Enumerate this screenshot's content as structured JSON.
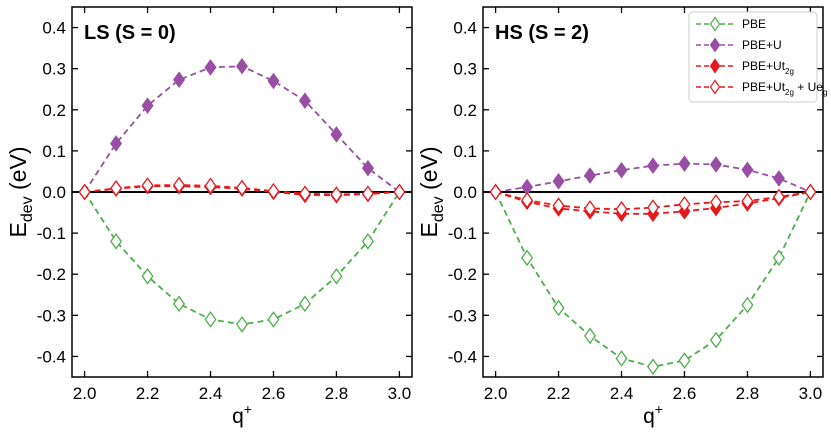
{
  "figure": {
    "x_label_main": "q",
    "x_label_sup": "+",
    "y_label_main": "E",
    "y_label_sub": "dev",
    "y_label_unit": " (eV)"
  },
  "legend": {
    "entries": [
      {
        "series": "PBE",
        "main": "PBE",
        "parts": []
      },
      {
        "series": "PBE+U",
        "main": "PBE+U",
        "parts": []
      },
      {
        "series": "PBE+U_t2g",
        "main": "PBE+U",
        "parts": [
          {
            "t": "t",
            "sub": "2g"
          }
        ]
      },
      {
        "series": "PBE+U_t2g+U_eg",
        "main": "PBE+U",
        "parts": [
          {
            "t": "t",
            "sub": "2g"
          },
          {
            "t": " + U",
            "sub": null
          },
          {
            "t": "e",
            "sub": "g"
          }
        ]
      }
    ]
  },
  "chart_data": [
    {
      "type": "line",
      "title": "LS (S = 0)",
      "xlabel": "q+",
      "ylabel": "E_dev (eV)",
      "xlim": [
        1.96,
        3.04
      ],
      "ylim": [
        -0.45,
        0.45
      ],
      "xticks": [
        2.0,
        2.2,
        2.4,
        2.6,
        2.8,
        3.0
      ],
      "yticks": [
        -0.4,
        -0.3,
        -0.2,
        -0.1,
        0.0,
        0.1,
        0.2,
        0.3,
        0.4
      ],
      "x": [
        2.0,
        2.1,
        2.2,
        2.3,
        2.4,
        2.5,
        2.6,
        2.7,
        2.8,
        2.9,
        3.0
      ],
      "series": [
        {
          "name": "PBE",
          "color": "#4daf4a",
          "marker": "diamond-open",
          "values": [
            0.0,
            -0.12,
            -0.205,
            -0.272,
            -0.31,
            -0.322,
            -0.31,
            -0.272,
            -0.205,
            -0.12,
            0.0
          ]
        },
        {
          "name": "PBE+U",
          "color": "#984ea3",
          "marker": "diamond-filled",
          "values": [
            0.0,
            0.118,
            0.21,
            0.273,
            0.303,
            0.306,
            0.27,
            0.222,
            0.14,
            0.058,
            0.0
          ]
        },
        {
          "name": "PBE+U_t2g",
          "color": "#e41a1c",
          "marker": "diamond-filled",
          "values": [
            0.0,
            0.008,
            0.014,
            0.014,
            0.012,
            0.008,
            0.0,
            -0.007,
            -0.008,
            -0.005,
            0.0
          ]
        },
        {
          "name": "PBE+U_t2g+U_eg",
          "color": "#e41a1c",
          "marker": "diamond-open",
          "values": [
            0.0,
            0.009,
            0.016,
            0.017,
            0.015,
            0.01,
            0.002,
            -0.004,
            -0.006,
            -0.004,
            0.0
          ]
        }
      ]
    },
    {
      "type": "line",
      "title": "HS (S = 2)",
      "xlabel": "q+",
      "ylabel": "E_dev (eV)",
      "xlim": [
        1.96,
        3.04
      ],
      "ylim": [
        -0.45,
        0.45
      ],
      "xticks": [
        2.0,
        2.2,
        2.4,
        2.6,
        2.8,
        3.0
      ],
      "yticks": [
        -0.4,
        -0.3,
        -0.2,
        -0.1,
        0.0,
        0.1,
        0.2,
        0.3,
        0.4
      ],
      "x": [
        2.0,
        2.1,
        2.2,
        2.3,
        2.4,
        2.5,
        2.6,
        2.7,
        2.8,
        2.9,
        3.0
      ],
      "series": [
        {
          "name": "PBE",
          "color": "#4daf4a",
          "marker": "diamond-open",
          "values": [
            0.0,
            -0.16,
            -0.282,
            -0.35,
            -0.405,
            -0.425,
            -0.41,
            -0.36,
            -0.275,
            -0.16,
            0.0
          ]
        },
        {
          "name": "PBE+U",
          "color": "#984ea3",
          "marker": "diamond-filled",
          "values": [
            0.0,
            0.012,
            0.026,
            0.04,
            0.053,
            0.064,
            0.069,
            0.067,
            0.054,
            0.033,
            0.0
          ]
        },
        {
          "name": "PBE+U_t2g",
          "color": "#e41a1c",
          "marker": "diamond-filled",
          "values": [
            0.0,
            -0.024,
            -0.04,
            -0.047,
            -0.053,
            -0.053,
            -0.047,
            -0.039,
            -0.028,
            -0.015,
            0.0
          ]
        },
        {
          "name": "PBE+U_t2g+U_eg",
          "color": "#e41a1c",
          "marker": "diamond-open",
          "values": [
            0.0,
            -0.02,
            -0.033,
            -0.04,
            -0.042,
            -0.038,
            -0.03,
            -0.025,
            -0.022,
            -0.012,
            0.0
          ]
        }
      ]
    }
  ]
}
